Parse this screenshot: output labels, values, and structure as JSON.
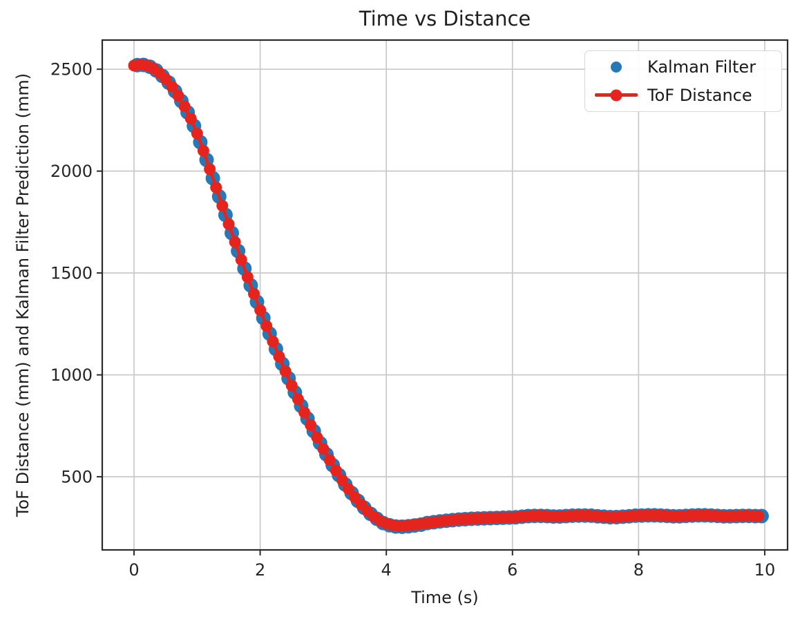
{
  "figure_title": "Time vs Distance",
  "colors": {
    "kalman_blue": "#2878b5",
    "tof_red": "#e5251d",
    "grid": "#c9c9c9",
    "spine": "#2b2b2b",
    "tick_text": "#262626",
    "background": "#ffffff"
  },
  "legend": {
    "position": "upper right",
    "entries": [
      {
        "label": "Kalman Filter",
        "marker": "dot",
        "color": "#2878b5"
      },
      {
        "label": "ToF Distance",
        "marker": "line-dot",
        "color": "#e5251d"
      }
    ]
  },
  "chart_data": {
    "type": "line",
    "title": "Time vs Distance",
    "xlabel": "Time (s)",
    "ylabel": "ToF Distance (mm) and Kalman Filter Prediction (mm)",
    "xlim": [
      -0.504,
      10.362
    ],
    "ylim": [
      141,
      2643
    ],
    "xticks": [
      0,
      2,
      4,
      6,
      8,
      10
    ],
    "yticks": [
      500,
      1000,
      1500,
      2000,
      2500
    ],
    "grid": true,
    "legend_position": "upper right",
    "series": [
      {
        "name": "Kalman Filter",
        "type": "scatter",
        "color": "#2878b5",
        "marker_radius": 10.5,
        "x": {
          "start": 0.05,
          "step": 0.1,
          "count": 100
        },
        "y": [
          2520,
          2521,
          2512,
          2494,
          2467,
          2434,
          2392,
          2344,
          2288,
          2222,
          2142,
          2055,
          1965,
          1875,
          1785,
          1696,
          1608,
          1522,
          1439,
          1358,
          1279,
          1202,
          1127,
          1054,
          983,
          914,
          848,
          785,
          724,
          665,
          610,
          557,
          508,
          462,
          420,
          382,
          348,
          318,
          294,
          273,
          262,
          256,
          255,
          257,
          261,
          265,
          273,
          277,
          281,
          284,
          287,
          290,
          292,
          294,
          295,
          296,
          297,
          298,
          299,
          300,
          301,
          304,
          307,
          308,
          308,
          307,
          305,
          305,
          307,
          309,
          310,
          310,
          309,
          306,
          304,
          302,
          302,
          304,
          306,
          309,
          310,
          311,
          311,
          310,
          308,
          306,
          306,
          308,
          310,
          311,
          311,
          310,
          308,
          306,
          306,
          307,
          308,
          308,
          307,
          307
        ]
      },
      {
        "name": "ToF Distance",
        "type": "line+marker",
        "color": "#e5251d",
        "marker_radius": 8.5,
        "line_width": 4.5,
        "x": {
          "start": 0.0,
          "step": 0.1,
          "count": 100
        },
        "y": [
          2518,
          2523,
          2519,
          2505,
          2482,
          2452,
          2415,
          2370,
          2318,
          2258,
          2185,
          2100,
          2010,
          1920,
          1830,
          1740,
          1652,
          1565,
          1480,
          1398,
          1318,
          1240,
          1164,
          1090,
          1018,
          948,
          881,
          816,
          754,
          694,
          637,
          583,
          532,
          484,
          440,
          400,
          364,
          332,
          305,
          284,
          270,
          262,
          259,
          260,
          263,
          267,
          271,
          275,
          279,
          283,
          286,
          289,
          291,
          293,
          295,
          296,
          297,
          298,
          299,
          300,
          300,
          303,
          306,
          308,
          309,
          308,
          306,
          305,
          306,
          308,
          310,
          311,
          310,
          308,
          305,
          303,
          302,
          303,
          305,
          308,
          310,
          311,
          312,
          311,
          309,
          307,
          306,
          307,
          309,
          311,
          312,
          311,
          309,
          307,
          306,
          307,
          308,
          309,
          308,
          307
        ]
      }
    ]
  }
}
